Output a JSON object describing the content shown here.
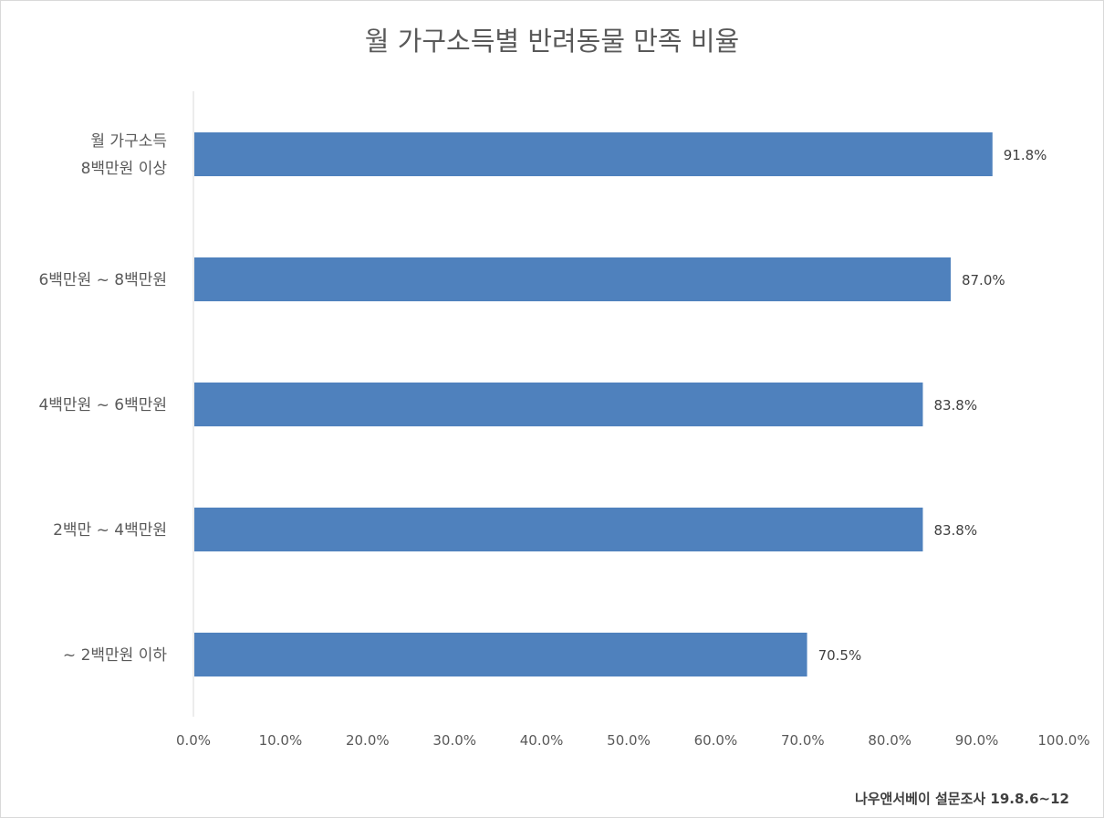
{
  "chart_data": {
    "type": "bar",
    "orientation": "horizontal",
    "title": "월 가구소득별 반려동물 만족 비율",
    "categories": [
      [
        "월 가구소득",
        "8백만원 이상"
      ],
      [
        "6백만원 ~ 8백만원"
      ],
      [
        "4백만원 ~ 6백만원"
      ],
      [
        "2백만 ~ 4백만원"
      ],
      [
        "~ 2백만원 이하"
      ]
    ],
    "values": [
      91.8,
      87.0,
      83.8,
      83.8,
      70.5
    ],
    "data_labels": [
      "91.8%",
      "87.0%",
      "83.8%",
      "83.8%",
      "70.5%"
    ],
    "xlim": [
      0,
      100
    ],
    "x_ticks": [
      0,
      10,
      20,
      30,
      40,
      50,
      60,
      70,
      80,
      90,
      100
    ],
    "x_tick_labels": [
      "0.0%",
      "10.0%",
      "20.0%",
      "30.0%",
      "40.0%",
      "50.0%",
      "60.0%",
      "70.0%",
      "80.0%",
      "90.0%",
      "100.0%"
    ],
    "bar_color": "#4f81bd",
    "grid": false,
    "legend": "none"
  },
  "footer": {
    "source": "나우앤서베이 설문조사 19.8.6~12"
  }
}
